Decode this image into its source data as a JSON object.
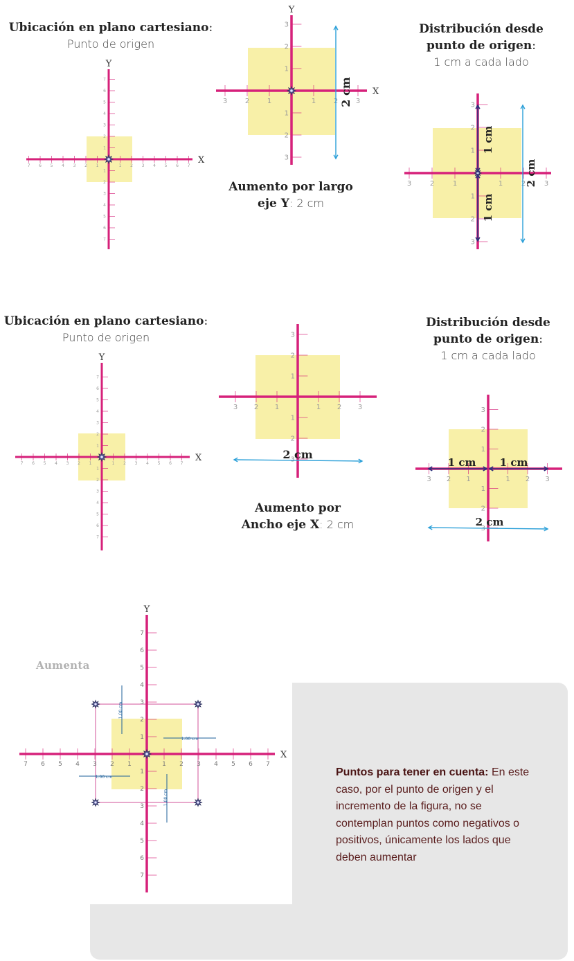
{
  "colors": {
    "axis": "#d6217a",
    "shape_fill": "#f8f0a8",
    "measure_arrow": "#2a9fd8",
    "half_arrow": "#2b2f7a",
    "outline": "#e8a8cc",
    "note_bg": "#e7e7e7",
    "note_text": "#5a1e1e"
  },
  "row1": {
    "left_title_bold": "Ubicación en plano cartesiano",
    "left_title_colon": ":",
    "left_subtitle": "Punto de origen",
    "middle_caption_line1": "Aumento por largo",
    "middle_caption_line2_bold": "eje Y",
    "middle_caption_line2_rest": ": 2 cm",
    "right_title_line1": "Distribución desde",
    "right_title_line2": "punto de origen",
    "right_title_colon": ":",
    "right_subtitle": "1 cm a cada lado",
    "measure_total": "2 cm",
    "measure_half": "1 cm"
  },
  "row2": {
    "left_title_bold": "Ubicación en plano cartesiano",
    "left_title_colon": ":",
    "left_subtitle": "Punto de origen",
    "middle_caption_line1": "Aumento por",
    "middle_caption_line2_bold": "Ancho eje X",
    "middle_caption_line2_rest": ": 2 cm",
    "right_title_line1": "Distribución desde",
    "right_title_line2": "punto de origen",
    "right_title_colon": ":",
    "right_subtitle": "1 cm a cada lado",
    "measure_total": "2 cm",
    "measure_half": "1 cm"
  },
  "axis_labels": {
    "x": "X",
    "y": "Y"
  },
  "small_dim_label": "1.00 cm",
  "aumenta_label": "Aumenta",
  "note": {
    "bold": "Puntos para tener en cuenta:",
    "text": " En este caso, por el punto de origen y el incremento de la figura, no se contemplan puntos como negativos o positivos, únicamente los lados que deben aumentar"
  }
}
